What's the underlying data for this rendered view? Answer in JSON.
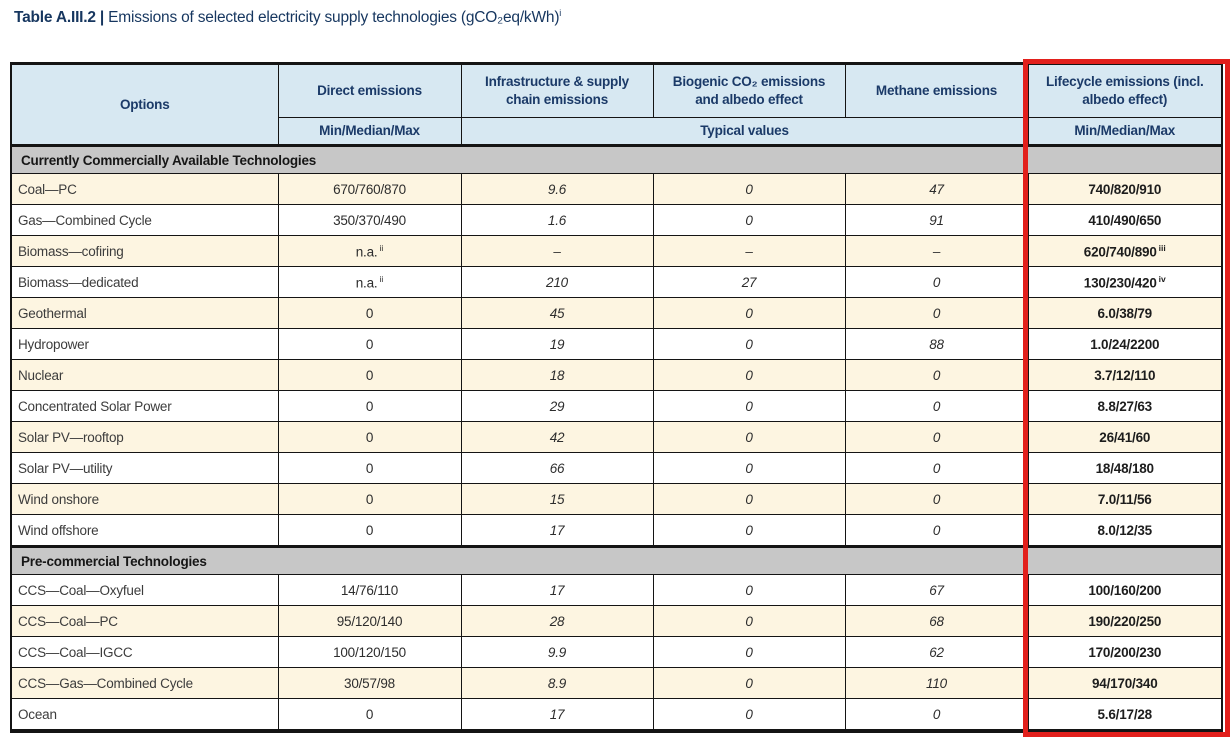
{
  "caption": {
    "label": "Table A.III.2 |",
    "text": " Emissions of selected electricity supply technologies (gCO₂eq/kWh)",
    "footnote": "i"
  },
  "colors": {
    "header_blue": "#d7e8f2",
    "header_text_navy": "#1b3a68",
    "row_cream": "#fdf5e1",
    "section_gray": "#c7c7c7",
    "grid_black": "#141414",
    "highlight_red": "#e2201c"
  },
  "table": {
    "columns": [
      {
        "key": "option",
        "label": "Options"
      },
      {
        "key": "direct",
        "label": "Direct emissions",
        "sub": "Min/Median/Max"
      },
      {
        "key": "infra",
        "label": "Infrastructure & supply chain emissions"
      },
      {
        "key": "biogenic",
        "label": "Biogenic CO₂ emissions and albedo effect"
      },
      {
        "key": "methane",
        "label": "Methane emissions"
      },
      {
        "key": "lifecycle",
        "label": "Lifecycle emissions (incl. albedo effect)",
        "sub": "Min/Median/Max"
      }
    ],
    "typical_values_label": "Typical values",
    "sections": [
      {
        "label": "Currently Commercially Available Technologies",
        "rows": [
          {
            "option": "Coal—PC",
            "direct": "670/760/870",
            "infra": "9.6",
            "biogenic": "0",
            "methane": "47",
            "lifecycle": "740/820/910"
          },
          {
            "option": "Gas—Combined Cycle",
            "direct": "350/370/490",
            "infra": "1.6",
            "biogenic": "0",
            "methane": "91",
            "lifecycle": "410/490/650"
          },
          {
            "option": "Biomass—cofiring",
            "direct": {
              "v": "n.a.",
              "sup": "ii"
            },
            "infra": "–",
            "biogenic": "–",
            "methane": "–",
            "lifecycle": {
              "v": "620/740/890",
              "sup": "iii"
            }
          },
          {
            "option": "Biomass—dedicated",
            "direct": {
              "v": "n.a.",
              "sup": "ii"
            },
            "infra": "210",
            "biogenic": "27",
            "methane": "0",
            "lifecycle": {
              "v": "130/230/420",
              "sup": "iv"
            }
          },
          {
            "option": "Geothermal",
            "direct": "0",
            "infra": "45",
            "biogenic": "0",
            "methane": "0",
            "lifecycle": "6.0/38/79"
          },
          {
            "option": "Hydropower",
            "direct": "0",
            "infra": "19",
            "biogenic": "0",
            "methane": "88",
            "lifecycle": "1.0/24/2200"
          },
          {
            "option": "Nuclear",
            "direct": "0",
            "infra": "18",
            "biogenic": "0",
            "methane": "0",
            "lifecycle": "3.7/12/110"
          },
          {
            "option": "Concentrated Solar Power",
            "direct": "0",
            "infra": "29",
            "biogenic": "0",
            "methane": "0",
            "lifecycle": "8.8/27/63"
          },
          {
            "option": "Solar PV—rooftop",
            "direct": "0",
            "infra": "42",
            "biogenic": "0",
            "methane": "0",
            "lifecycle": "26/41/60"
          },
          {
            "option": "Solar PV—utility",
            "direct": "0",
            "infra": "66",
            "biogenic": "0",
            "methane": "0",
            "lifecycle": "18/48/180"
          },
          {
            "option": "Wind onshore",
            "direct": "0",
            "infra": "15",
            "biogenic": "0",
            "methane": "0",
            "lifecycle": "7.0/11/56"
          },
          {
            "option": "Wind offshore",
            "direct": "0",
            "infra": "17",
            "biogenic": "0",
            "methane": "0",
            "lifecycle": "8.0/12/35"
          }
        ]
      },
      {
        "label": "Pre-commercial Technologies",
        "rows": [
          {
            "option": "CCS—Coal—Oxyfuel",
            "direct": "14/76/110",
            "infra": "17",
            "biogenic": "0",
            "methane": "67",
            "lifecycle": "100/160/200"
          },
          {
            "option": "CCS—Coal—PC",
            "direct": "95/120/140",
            "infra": "28",
            "biogenic": "0",
            "methane": "68",
            "lifecycle": "190/220/250"
          },
          {
            "option": "CCS—Coal—IGCC",
            "direct": "100/120/150",
            "infra": "9.9",
            "biogenic": "0",
            "methane": "62",
            "lifecycle": "170/200/230"
          },
          {
            "option": "CCS—Gas—Combined Cycle",
            "direct": "30/57/98",
            "infra": "8.9",
            "biogenic": "0",
            "methane": "110",
            "lifecycle": "94/170/340"
          },
          {
            "option": "Ocean",
            "direct": "0",
            "infra": "17",
            "biogenic": "0",
            "methane": "0",
            "lifecycle": "5.6/17/28"
          }
        ]
      }
    ]
  }
}
